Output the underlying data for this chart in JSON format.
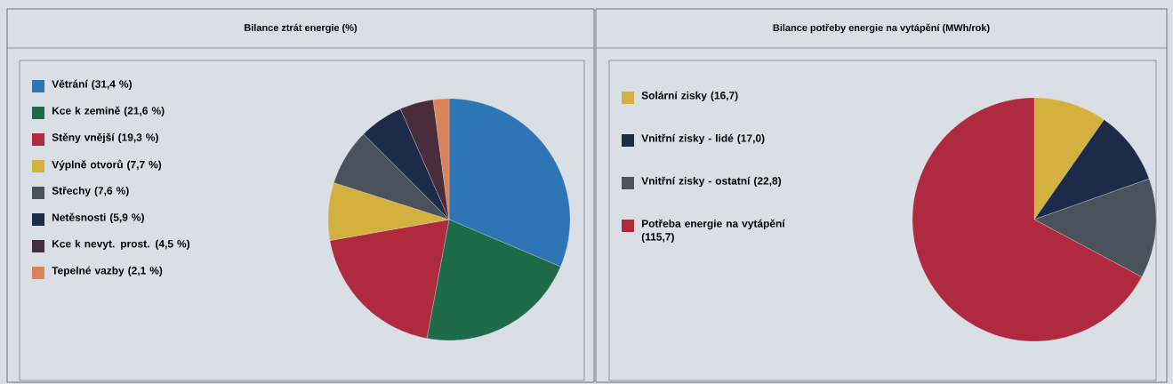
{
  "chart_data": [
    {
      "type": "pie",
      "title": "Bilance ztrát energie (%)",
      "legend": "left",
      "categories": [
        "Větrání (31,4 %)",
        "Kce k zemině (21,6 %)",
        "Stěny vnější (19,3 %)",
        "Výplně otvorů (7,7 %)",
        "Střechy (7,6 %)",
        "Netěsnosti (5,9 %)",
        "Kce k nevyt. prost. (4,5 %)",
        "Tepelné vazby (2,1 %)"
      ],
      "values": [
        31.4,
        21.6,
        19.3,
        7.7,
        7.6,
        5.9,
        4.5,
        2.1
      ],
      "colors": [
        "#2e75b6",
        "#1e6b4a",
        "#b02a3f",
        "#d4b13e",
        "#4a535c",
        "#1c2b47",
        "#4a2d3a",
        "#d9825b"
      ]
    },
    {
      "type": "pie",
      "title": "Bilance potřeby energie na vytápění (MWh/rok)",
      "legend": "left",
      "categories": [
        "Solární zisky (16,7)",
        "Vnitřní zisky - lidé (17,0)",
        "Vnitřní zisky - ostatní (22,8)",
        "Potřeba energie na vytápění (115,7)"
      ],
      "values": [
        16.7,
        17.0,
        22.8,
        115.7
      ],
      "colors": [
        "#d4b13e",
        "#1c2b47",
        "#4a535c",
        "#b02a3f"
      ]
    }
  ]
}
